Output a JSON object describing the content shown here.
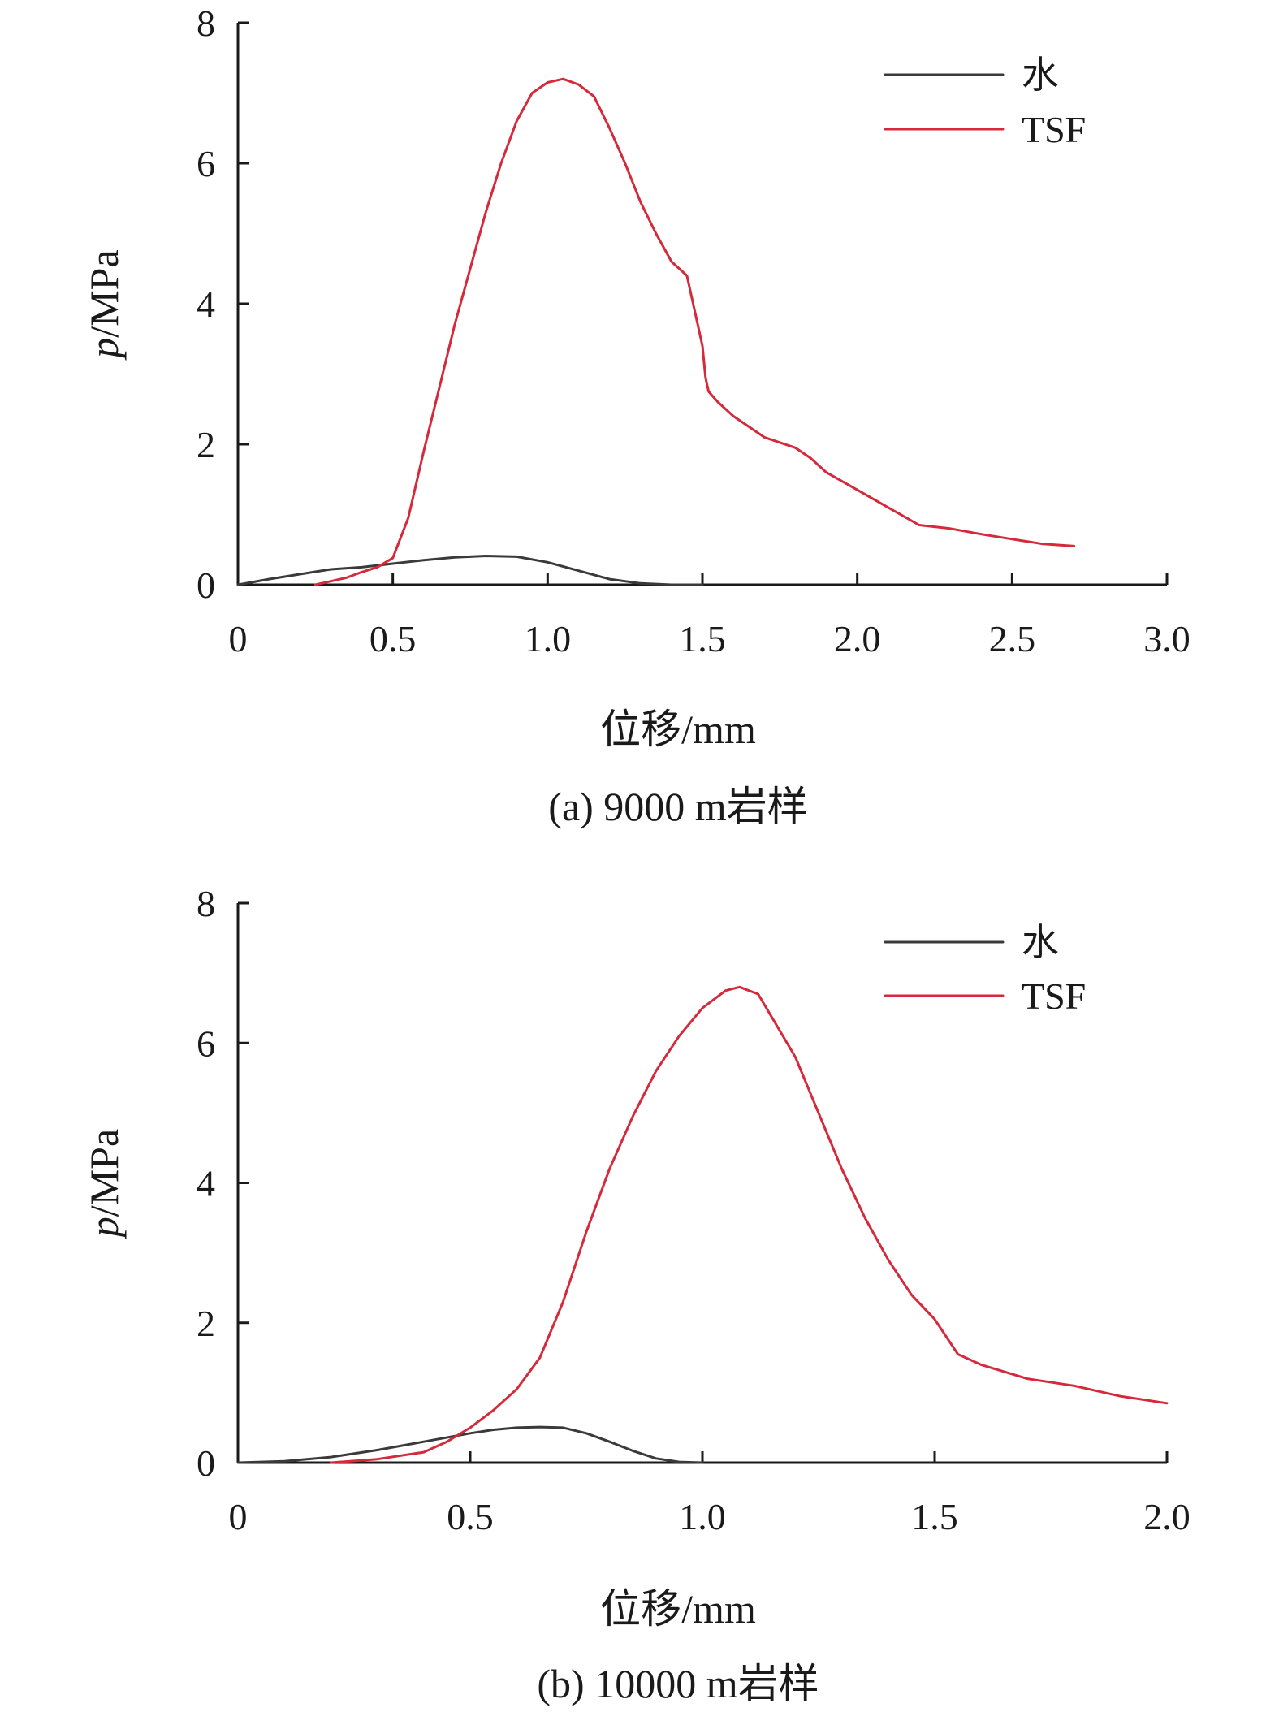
{
  "chart_data": [
    {
      "type": "line",
      "caption": "(a) 9000 m岩样",
      "xlabel": "位移/mm",
      "ylabel": "p/MPa",
      "ylabel_italic": "p",
      "ylabel_rest": "/MPa",
      "xlim": [
        0,
        3.0
      ],
      "ylim": [
        0,
        8
      ],
      "xticks": [
        0,
        0.5,
        1.0,
        1.5,
        2.0,
        2.5,
        3.0
      ],
      "xtick_labels": [
        "0",
        "0.5",
        "1.0",
        "1.5",
        "2.0",
        "2.5",
        "3.0"
      ],
      "yticks": [
        0,
        2,
        4,
        6,
        8
      ],
      "ytick_labels": [
        "0",
        "2",
        "4",
        "6",
        "8"
      ],
      "grid": false,
      "legend_position": "top-right",
      "series": [
        {
          "name": "水",
          "color": "#3a3a3a",
          "x": [
            0,
            0.1,
            0.2,
            0.3,
            0.4,
            0.5,
            0.6,
            0.7,
            0.8,
            0.9,
            1.0,
            1.1,
            1.2,
            1.3,
            1.4,
            1.5
          ],
          "y": [
            0.0,
            0.08,
            0.15,
            0.22,
            0.25,
            0.3,
            0.35,
            0.39,
            0.41,
            0.4,
            0.32,
            0.2,
            0.08,
            0.02,
            0.0,
            0.0
          ]
        },
        {
          "name": "TSF",
          "color": "#d42a3c",
          "x": [
            0.25,
            0.3,
            0.35,
            0.4,
            0.45,
            0.5,
            0.55,
            0.6,
            0.65,
            0.7,
            0.75,
            0.8,
            0.85,
            0.9,
            0.95,
            1.0,
            1.05,
            1.1,
            1.15,
            1.2,
            1.25,
            1.3,
            1.35,
            1.4,
            1.45,
            1.5,
            1.51,
            1.52,
            1.55,
            1.6,
            1.7,
            1.8,
            1.85,
            1.9,
            2.0,
            2.1,
            2.2,
            2.3,
            2.4,
            2.5,
            2.6,
            2.7
          ],
          "y": [
            0.0,
            0.05,
            0.1,
            0.18,
            0.25,
            0.38,
            0.95,
            1.9,
            2.8,
            3.7,
            4.5,
            5.3,
            6.0,
            6.6,
            7.0,
            7.15,
            7.2,
            7.12,
            6.95,
            6.5,
            6.0,
            5.45,
            5.0,
            4.6,
            4.4,
            3.4,
            2.95,
            2.75,
            2.6,
            2.4,
            2.1,
            1.95,
            1.8,
            1.6,
            1.35,
            1.1,
            0.85,
            0.8,
            0.72,
            0.65,
            0.58,
            0.55
          ]
        }
      ]
    },
    {
      "type": "line",
      "caption": "(b) 10000 m岩样",
      "xlabel": "位移/mm",
      "ylabel": "p/MPa",
      "ylabel_italic": "p",
      "ylabel_rest": "/MPa",
      "xlim": [
        0,
        2.0
      ],
      "ylim": [
        0,
        8
      ],
      "xticks": [
        0,
        0.5,
        1.0,
        1.5,
        2.0
      ],
      "xtick_labels": [
        "0",
        "0.5",
        "1.0",
        "1.5",
        "2.0"
      ],
      "yticks": [
        0,
        2,
        4,
        6,
        8
      ],
      "ytick_labels": [
        "0",
        "2",
        "4",
        "6",
        "8"
      ],
      "grid": false,
      "legend_position": "top-right",
      "series": [
        {
          "name": "水",
          "color": "#3a3a3a",
          "x": [
            0,
            0.1,
            0.2,
            0.3,
            0.4,
            0.5,
            0.55,
            0.6,
            0.65,
            0.7,
            0.75,
            0.8,
            0.85,
            0.9,
            0.95,
            1.0
          ],
          "y": [
            0.0,
            0.02,
            0.08,
            0.18,
            0.3,
            0.42,
            0.47,
            0.5,
            0.51,
            0.5,
            0.42,
            0.3,
            0.17,
            0.06,
            0.01,
            0.0
          ]
        },
        {
          "name": "TSF",
          "color": "#d42a3c",
          "x": [
            0.2,
            0.3,
            0.4,
            0.45,
            0.5,
            0.55,
            0.6,
            0.65,
            0.7,
            0.75,
            0.8,
            0.85,
            0.9,
            0.95,
            1.0,
            1.05,
            1.08,
            1.12,
            1.2,
            1.25,
            1.3,
            1.35,
            1.4,
            1.45,
            1.5,
            1.55,
            1.6,
            1.7,
            1.8,
            1.9,
            2.0
          ],
          "y": [
            0.0,
            0.05,
            0.15,
            0.3,
            0.5,
            0.75,
            1.05,
            1.5,
            2.3,
            3.3,
            4.2,
            4.95,
            5.6,
            6.1,
            6.5,
            6.75,
            6.8,
            6.7,
            5.8,
            5.0,
            4.2,
            3.5,
            2.9,
            2.4,
            2.05,
            1.55,
            1.4,
            1.2,
            1.1,
            0.95,
            0.85
          ]
        }
      ]
    }
  ]
}
